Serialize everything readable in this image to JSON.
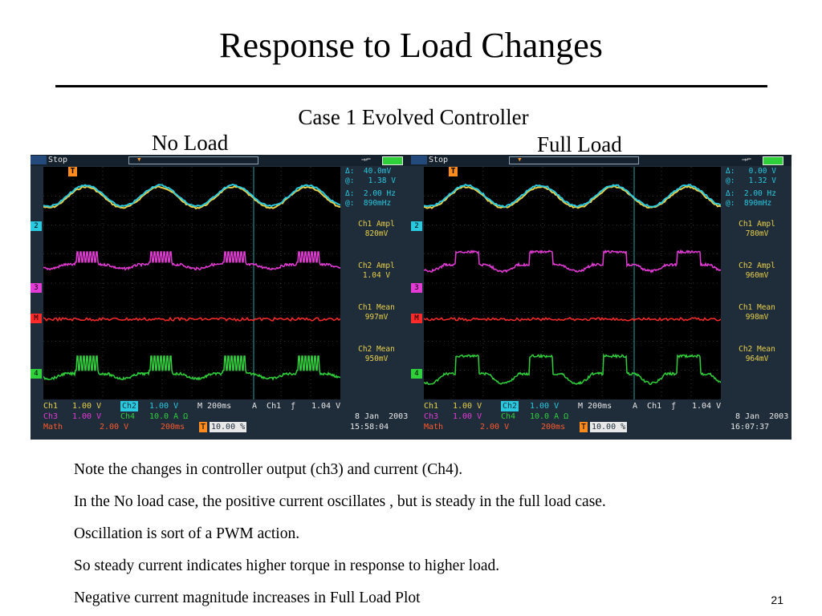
{
  "slide": {
    "title": "Response to Load Changes",
    "caption": "Case 1 Evolved Controller",
    "page_number": "21"
  },
  "scopes": {
    "no_load": {
      "label": "No Load",
      "status": "Stop",
      "trigger_marker": "T",
      "cursor_delta": "Δ:  40.0mV",
      "cursor_at": "@:   1.38 V",
      "freq_delta": "Δ:  2.00 Hz",
      "freq_at": "@:  890mHz",
      "ch1_ampl_label": "Ch1 Ampl",
      "ch1_ampl_value": "820mV",
      "ch2_ampl_label": "Ch2 Ampl",
      "ch2_ampl_value": "1.04 V",
      "ch1_mean_label": "Ch1 Mean",
      "ch1_mean_value": "997mV",
      "ch2_mean_label": "Ch2 Mean",
      "ch2_mean_value": "950mV",
      "ch1_name": "Ch1",
      "ch1_scale": "1.00 V",
      "ch2_name": "Ch2",
      "ch2_scale": "1.00 V",
      "ch3_name": "Ch3",
      "ch3_scale": "1.00 V",
      "ch4_name": "Ch4",
      "ch4_scale": "10.0 A Ω",
      "math_name": "Math",
      "math_scale": "2.00 V",
      "math_time": "200ms",
      "timebase": "M 200ms",
      "trigger_source": "A  Ch1  ƒ",
      "trigger_level": "1.04 V",
      "trigger_pos": "10.00 %",
      "date": "8 Jan  2003",
      "time": "15:58:04",
      "marker_ch2": "2",
      "marker_ch3": "3",
      "marker_math": "M",
      "marker_ch4": "4"
    },
    "full_load": {
      "label": "Full Load",
      "status": "Stop",
      "trigger_marker": "T",
      "cursor_delta": "Δ:   0.00 V",
      "cursor_at": "@:   1.32 V",
      "freq_delta": "Δ:  2.00 Hz",
      "freq_at": "@:  890mHz",
      "ch1_ampl_label": "Ch1 Ampl",
      "ch1_ampl_value": "780mV",
      "ch2_ampl_label": "Ch2 Ampl",
      "ch2_ampl_value": "960mV",
      "ch1_mean_label": "Ch1 Mean",
      "ch1_mean_value": "998mV",
      "ch2_mean_label": "Ch2 Mean",
      "ch2_mean_value": "964mV",
      "ch1_name": "Ch1",
      "ch1_scale": "1.00 V",
      "ch2_name": "Ch2",
      "ch2_scale": "1.00 V",
      "ch3_name": "Ch3",
      "ch3_scale": "1.00 V",
      "ch4_name": "Ch4",
      "ch4_scale": "10.0 A Ω",
      "math_name": "Math",
      "math_scale": "2.00 V",
      "math_time": "200ms",
      "timebase": "M 200ms",
      "trigger_source": "A  Ch1  ƒ",
      "trigger_level": "1.04 V",
      "trigger_pos": "10.00 %",
      "date": "8 Jan  2003",
      "time": "16:07:37",
      "marker_ch2": "2",
      "marker_ch3": "3",
      "marker_math": "M",
      "marker_ch4": "4"
    }
  },
  "colors": {
    "ch1": "#e8d04a",
    "ch2": "#29c9e0",
    "ch3": "#e43ad6",
    "math": "#ff2a2a",
    "ch4": "#2fd13a",
    "scope_bezel": "#1f2c3a"
  },
  "notes": [
    "Note the changes in controller output (ch3) and current (Ch4).",
    "In the No load case, the positive current oscillates , but is steady in the full load case.",
    "Oscillation is sort of a PWM action.",
    "So steady current indicates higher torque in response to higher load.",
    "Negative current magnitude increases in Full Load Plot"
  ]
}
